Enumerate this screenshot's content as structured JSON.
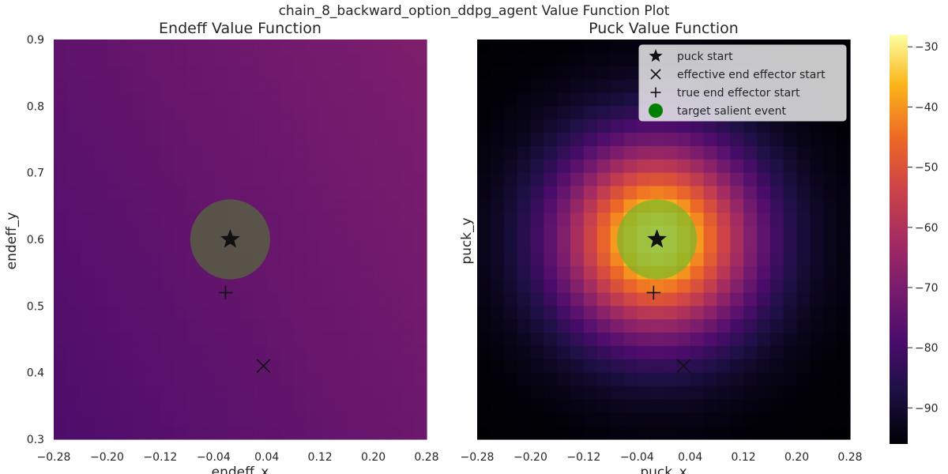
{
  "figure": {
    "suptitle": "chain_8_backward_option_ddpg_agent Value Function Plot"
  },
  "chart_data": [
    {
      "type": "heatmap",
      "title": "Endeff Value Function",
      "xlabel": "endeff_x",
      "ylabel": "endeff_y",
      "xlim": [
        -0.28,
        0.28
      ],
      "ylim": [
        0.3,
        0.9
      ],
      "x_ticks": [
        "−0.28",
        "−0.20",
        "−0.12",
        "−0.04",
        "0.04",
        "0.12",
        "0.20",
        "0.28"
      ],
      "y_ticks": [
        "0.3",
        "0.4",
        "0.5",
        "0.6",
        "0.7",
        "0.8",
        "0.9"
      ],
      "grid": {
        "cols": 28,
        "rows": 30
      },
      "value_model": {
        "kind": "linear",
        "base": -78.5,
        "slope_x": 6,
        "slope_y": 3.5
      },
      "markers": [
        {
          "label": "puck start",
          "symbol": "star",
          "x": -0.015,
          "y": 0.6
        },
        {
          "label": "effective end effector start",
          "symbol": "x",
          "x": 0.035,
          "y": 0.41
        },
        {
          "label": "true end effector start",
          "symbol": "plus",
          "x": -0.022,
          "y": 0.52
        },
        {
          "label": "target salient event",
          "symbol": "circle",
          "x": -0.015,
          "y": 0.6,
          "radius": 0.06,
          "color": "#556b3c"
        }
      ],
      "show_ylabels": true
    },
    {
      "type": "heatmap",
      "title": "Puck Value Function",
      "xlabel": "puck_x",
      "ylabel": "puck_y",
      "xlim": [
        -0.28,
        0.28
      ],
      "ylim": [
        0.3,
        0.9
      ],
      "x_ticks": [
        "−0.28",
        "−0.20",
        "−0.12",
        "−0.04",
        "0.04",
        "0.12",
        "0.20",
        "0.28"
      ],
      "y_ticks": [],
      "grid": {
        "cols": 28,
        "rows": 30
      },
      "value_model": {
        "kind": "peak",
        "center_x": -0.01,
        "center_y": 0.6,
        "max": -29,
        "min": -96,
        "spread_x": 0.1,
        "spread_y": 0.1
      },
      "markers": [
        {
          "label": "puck start",
          "symbol": "star",
          "x": -0.01,
          "y": 0.6
        },
        {
          "label": "effective end effector start",
          "symbol": "x",
          "x": 0.03,
          "y": 0.41
        },
        {
          "label": "true end effector start",
          "symbol": "plus",
          "x": -0.015,
          "y": 0.52
        },
        {
          "label": "target salient event",
          "symbol": "circle",
          "x": -0.01,
          "y": 0.6,
          "radius": 0.06,
          "color": "#7ab32a"
        }
      ],
      "show_ylabels": false,
      "legend": {
        "placement": "top-right",
        "entries": [
          {
            "symbol": "star",
            "label": "puck start"
          },
          {
            "symbol": "x",
            "label": "effective end effector start"
          },
          {
            "symbol": "plus",
            "label": "true end effector start"
          },
          {
            "symbol": "circle",
            "label": "target salient event",
            "color": "#008000"
          }
        ]
      }
    }
  ],
  "colorbar": {
    "colormap": "inferno",
    "range": [
      -96,
      -28
    ],
    "ticks": [
      "−30",
      "−40",
      "−50",
      "−60",
      "−70",
      "−80",
      "−90"
    ],
    "tick_values": [
      -30,
      -40,
      -50,
      -60,
      -70,
      -80,
      -90
    ]
  }
}
